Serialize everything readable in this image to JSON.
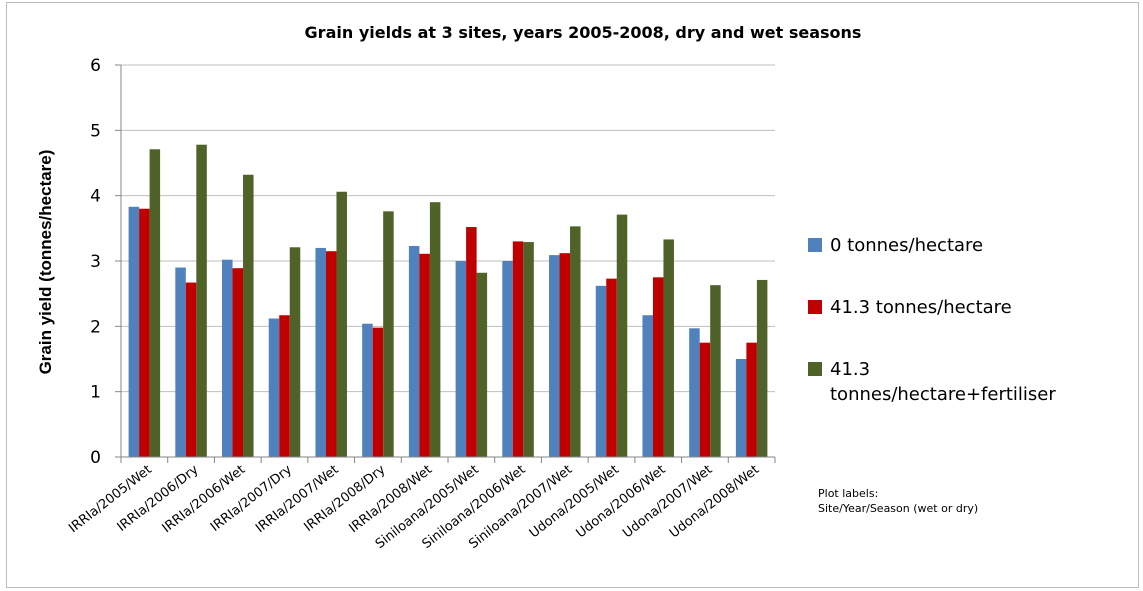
{
  "chart_data": {
    "type": "bar",
    "title": "Grain yields at 3 sites, years 2005-2008,  dry and wet seasons",
    "ylabel": "Grain yield (tonnes/hectare)",
    "xlabel": "",
    "ylim": [
      0,
      6
    ],
    "yticks": [
      "0",
      "1",
      "2",
      "3",
      "4",
      "5",
      "6"
    ],
    "grid": true,
    "legend_position": "right",
    "categories": [
      "IRRIa/2005/Wet",
      "IRRIa/2006/Dry",
      "IRRIa/2006/Wet",
      "IRRIa/2007/Dry",
      "IRRIa/2007/Wet",
      "IRRIa/2008/Dry",
      "IRRIa/2008/Wet",
      "Siniloana/2005/Wet",
      "Siniloana/2006/Wet",
      "Siniloana/2007/Wet",
      "Udona/2005/Wet",
      "Udona/2006/Wet",
      "Udona/2007/Wet",
      "Udona/2008/Wet"
    ],
    "series": [
      {
        "name": "0 tonnes/hectare",
        "color": "#4f81bd",
        "values": [
          3.83,
          2.9,
          3.02,
          2.12,
          3.2,
          2.04,
          3.23,
          3.0,
          3.0,
          3.09,
          2.62,
          2.17,
          1.97,
          1.5
        ]
      },
      {
        "name": "41.3 tonnes/hectare",
        "color": "#c00000",
        "values": [
          3.8,
          2.67,
          2.89,
          2.17,
          3.15,
          1.98,
          3.11,
          3.52,
          3.3,
          3.12,
          2.73,
          2.75,
          1.75,
          1.75
        ]
      },
      {
        "name": "41.3 tonnes/hectare+fertiliser",
        "color": "#4f6228",
        "values": [
          4.71,
          4.78,
          4.32,
          3.21,
          4.06,
          3.76,
          3.9,
          2.82,
          3.29,
          3.53,
          3.71,
          3.33,
          2.63,
          2.71
        ]
      }
    ]
  },
  "legend": [
    {
      "label": "0 tonnes/hectare",
      "color": "#4f81bd"
    },
    {
      "label": "41.3 tonnes/hectare",
      "color": "#c00000"
    },
    {
      "label": "41.3 tonnes/hectare+fertiliser",
      "color": "#4f6228"
    }
  ],
  "note": {
    "line1": "Plot labels:",
    "line2": "Site/Year/Season (wet or dry)"
  }
}
